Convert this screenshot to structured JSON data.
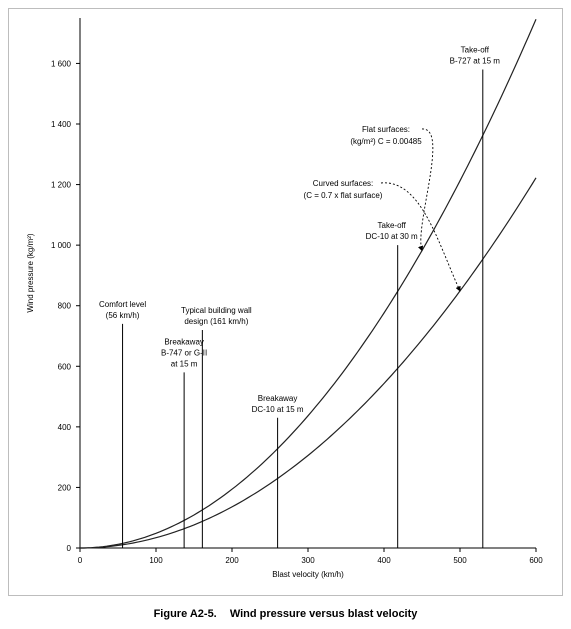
{
  "chart_data": {
    "type": "line",
    "xlabel": "Blast velocity (km/h)",
    "ylabel": "Wind pressure (kg/m²)",
    "xlim": [
      0,
      600
    ],
    "ylim": [
      0,
      1750
    ],
    "x_ticks": [
      0,
      100,
      200,
      300,
      400,
      500,
      600
    ],
    "x_tick_labels": [
      "0",
      "100",
      "200",
      "300",
      "400",
      "500",
      "600"
    ],
    "y_ticks": [
      0,
      200,
      400,
      600,
      800,
      1000,
      1200,
      1400,
      1600
    ],
    "y_tick_labels": [
      "0",
      "200",
      "400",
      "600",
      "800",
      "1 000",
      "1 200",
      "1 400",
      "1 600"
    ],
    "grid": false,
    "series": [
      {
        "name": "Flat surfaces",
        "coefficient": 0.00485,
        "x": [
          0,
          50,
          100,
          150,
          200,
          250,
          300,
          350,
          400,
          450,
          500,
          550,
          600
        ],
        "values": [
          0,
          12,
          49,
          109,
          194,
          303,
          437,
          594,
          776,
          982,
          1213,
          1467,
          1746
        ]
      },
      {
        "name": "Curved surfaces",
        "coefficient": 0.003395,
        "x": [
          0,
          50,
          100,
          150,
          200,
          250,
          300,
          350,
          400,
          450,
          500,
          550,
          600
        ],
        "values": [
          0,
          8,
          34,
          76,
          136,
          212,
          306,
          416,
          543,
          687,
          849,
          1027,
          1222
        ]
      }
    ],
    "markers": [
      {
        "x": 56,
        "top": 740,
        "lines": [
          "Comfort level",
          "(56 km/h)"
        ]
      },
      {
        "x": 137,
        "top": 580,
        "lines": [
          "Breakaway",
          "B-747 or G-II",
          "at 15 m"
        ]
      },
      {
        "x": 161,
        "top": 720,
        "lines": [
          "Typical building wall",
          "design (161 km/h)"
        ]
      },
      {
        "x": 260,
        "top": 430,
        "lines": [
          "Breakaway",
          "DC-10 at 15 m"
        ]
      },
      {
        "x": 418,
        "top": 1000,
        "lines": [
          "Take-off",
          "DC-10 at 30 m"
        ]
      },
      {
        "x": 530,
        "top": 1580,
        "lines": [
          "Take-off",
          "B-727 at 15 m"
        ]
      }
    ],
    "annotations": [
      {
        "lines": [
          "Flat surfaces:",
          "(kg/m²) C = 0.00485"
        ]
      },
      {
        "lines": [
          "Curved surfaces:",
          "(C = 0.7 x flat surface)"
        ]
      }
    ]
  },
  "caption": {
    "label": "Figure A2-5.",
    "text": "Wind pressure versus blast velocity"
  }
}
